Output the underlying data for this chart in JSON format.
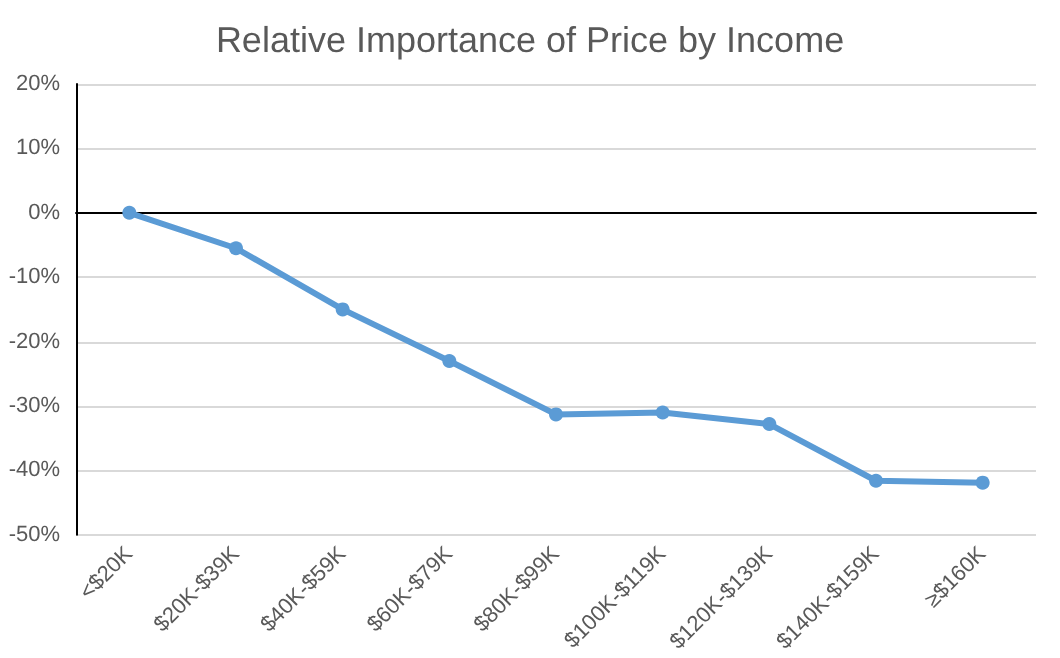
{
  "chart_data": {
    "type": "line",
    "title": "Relative Importance of Price by Income",
    "categories": [
      "<$20K",
      "$20K-$39K",
      "$40K-$59K",
      "$60K-$79K",
      "$80K-$99K",
      "$100K-$119K",
      "$120K-$139K",
      "$140K-$159K",
      "≥$160K"
    ],
    "series": [
      {
        "color": "#5b9bd5",
        "values": [
          0,
          -5.5,
          -15,
          -23,
          -31.3,
          -31,
          -32.8,
          -41.6,
          -41.9
        ]
      }
    ],
    "ylim": [
      -50,
      20
    ],
    "yticks": [
      {
        "value": -50,
        "label": "-50%"
      },
      {
        "value": -40,
        "label": "-40%"
      },
      {
        "value": -30,
        "label": "-30%"
      },
      {
        "value": -20,
        "label": "-20%"
      },
      {
        "value": -10,
        "label": "-10%"
      },
      {
        "value": 0,
        "label": "0%"
      },
      {
        "value": 10,
        "label": "10%"
      },
      {
        "value": 20,
        "label": "20%"
      }
    ],
    "grid": "y",
    "marker": "circle",
    "line_style": "solid"
  }
}
